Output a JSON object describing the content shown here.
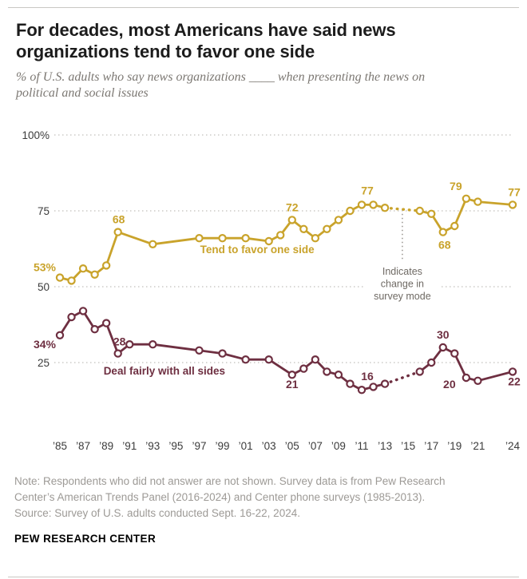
{
  "header": {
    "title": "For decades, most Americans have said news organizations tend to favor one side",
    "subtitle": "% of U.S. adults who say news organizations ____ when presenting the news on political and social issues"
  },
  "chart_data": {
    "type": "line",
    "title": "For decades, most Americans have said news organizations tend to favor one side",
    "x_range": [
      1985,
      2024
    ],
    "ylim": [
      0,
      100
    ],
    "grid": "dotted-horizontal",
    "gridlines": [
      {
        "value": 100,
        "label": "100%"
      },
      {
        "value": 75,
        "label": "75"
      },
      {
        "value": 50,
        "label": "50"
      },
      {
        "value": 25,
        "label": "25"
      }
    ],
    "x_ticks": [
      {
        "year": 1985,
        "label": "’85"
      },
      {
        "year": 1987,
        "label": "’87"
      },
      {
        "year": 1989,
        "label": "’89"
      },
      {
        "year": 1991,
        "label": "’91"
      },
      {
        "year": 1993,
        "label": "’93"
      },
      {
        "year": 1995,
        "label": "’95"
      },
      {
        "year": 1997,
        "label": "’97"
      },
      {
        "year": 1999,
        "label": "’99"
      },
      {
        "year": 2001,
        "label": "’01"
      },
      {
        "year": 2003,
        "label": "’03"
      },
      {
        "year": 2005,
        "label": "’05"
      },
      {
        "year": 2007,
        "label": "’07"
      },
      {
        "year": 2009,
        "label": "’09"
      },
      {
        "year": 2011,
        "label": "’11"
      },
      {
        "year": 2013,
        "label": "’13"
      },
      {
        "year": 2015,
        "label": "’15"
      },
      {
        "year": 2017,
        "label": "’17"
      },
      {
        "year": 2019,
        "label": "’19"
      },
      {
        "year": 2021,
        "label": "’21"
      },
      {
        "year": 2024,
        "label": "’24"
      }
    ],
    "dash_segment": [
      2013,
      2016
    ],
    "mode_change": {
      "year": 2014.5,
      "line_top_value": 74,
      "line_bottom_value": 59,
      "note_lines": [
        "Indicates",
        "change in",
        "survey mode"
      ]
    },
    "series": [
      {
        "name": "Tend to favor one side",
        "color": "#C9A32B",
        "name_label": {
          "year": 2002,
          "value": 61
        },
        "points": [
          [
            1985,
            53
          ],
          [
            1986,
            52
          ],
          [
            1987,
            56
          ],
          [
            1988,
            54
          ],
          [
            1989,
            57
          ],
          [
            1990,
            68
          ],
          [
            1993,
            64
          ],
          [
            1997,
            66
          ],
          [
            1999,
            66
          ],
          [
            2001,
            66
          ],
          [
            2003,
            65
          ],
          [
            2004,
            67
          ],
          [
            2005,
            72
          ],
          [
            2006,
            69
          ],
          [
            2007,
            66
          ],
          [
            2008,
            69
          ],
          [
            2009,
            72
          ],
          [
            2010,
            75
          ],
          [
            2011,
            77
          ],
          [
            2012,
            77
          ],
          [
            2013,
            76
          ],
          [
            2016,
            75
          ],
          [
            2017,
            74
          ],
          [
            2018,
            68
          ],
          [
            2019,
            70
          ],
          [
            2020,
            79
          ],
          [
            2021,
            78
          ],
          [
            2024,
            77
          ]
        ],
        "point_labels": [
          {
            "year": 1985,
            "text": "53%",
            "anchor": "end",
            "dx": -5,
            "dy": -8
          },
          {
            "year": 1990,
            "text": "68",
            "dx": 1,
            "dy": -11
          },
          {
            "year": 2005,
            "text": "72",
            "dx": 0,
            "dy": -11
          },
          {
            "year": 2011,
            "text": "77",
            "dx": 7,
            "dy": -13
          },
          {
            "year": 2018,
            "text": "68",
            "dx": 2,
            "dy": 21
          },
          {
            "year": 2020,
            "text": "79",
            "dx": -13,
            "dy": -11
          },
          {
            "year": 2024,
            "text": "77",
            "dx": 2,
            "dy": -11
          }
        ]
      },
      {
        "name": "Deal fairly with all sides",
        "color": "#6E2F41",
        "name_label": {
          "year": 1994,
          "value": 21
        },
        "points": [
          [
            1985,
            34
          ],
          [
            1986,
            40
          ],
          [
            1987,
            42
          ],
          [
            1988,
            36
          ],
          [
            1989,
            38
          ],
          [
            1990,
            28
          ],
          [
            1991,
            31
          ],
          [
            1993,
            31
          ],
          [
            1997,
            29
          ],
          [
            1999,
            28
          ],
          [
            2001,
            26
          ],
          [
            2003,
            26
          ],
          [
            2005,
            21
          ],
          [
            2006,
            23
          ],
          [
            2007,
            26
          ],
          [
            2008,
            22
          ],
          [
            2009,
            21
          ],
          [
            2010,
            18
          ],
          [
            2011,
            16
          ],
          [
            2012,
            17
          ],
          [
            2013,
            18
          ],
          [
            2016,
            22
          ],
          [
            2017,
            25
          ],
          [
            2018,
            30
          ],
          [
            2019,
            28
          ],
          [
            2020,
            20
          ],
          [
            2021,
            19
          ],
          [
            2024,
            22
          ]
        ],
        "point_labels": [
          {
            "year": 1985,
            "text": "34%",
            "anchor": "end",
            "dx": -5,
            "dy": 16
          },
          {
            "year": 1990,
            "text": "28",
            "dx": 2,
            "dy": -10
          },
          {
            "year": 2005,
            "text": "21",
            "dx": 0,
            "dy": 17
          },
          {
            "year": 2011,
            "text": "16",
            "dx": 7,
            "dy": -12
          },
          {
            "year": 2018,
            "text": "30",
            "dx": 0,
            "dy": -11
          },
          {
            "year": 2020,
            "text": "20",
            "dx": -21,
            "dy": 13
          },
          {
            "year": 2024,
            "text": "22",
            "dx": 2,
            "dy": 17
          }
        ]
      }
    ]
  },
  "note_lines": [
    "Note: Respondents who did not answer are not shown. Survey data is from Pew Research",
    "Center’s American Trends Panel (2016-2024) and Center phone surveys (1985-2013).",
    "Source: Survey of U.S. adults conducted Sept. 16-22, 2024."
  ],
  "footer": {
    "brand": "PEW RESEARCH CENTER"
  }
}
